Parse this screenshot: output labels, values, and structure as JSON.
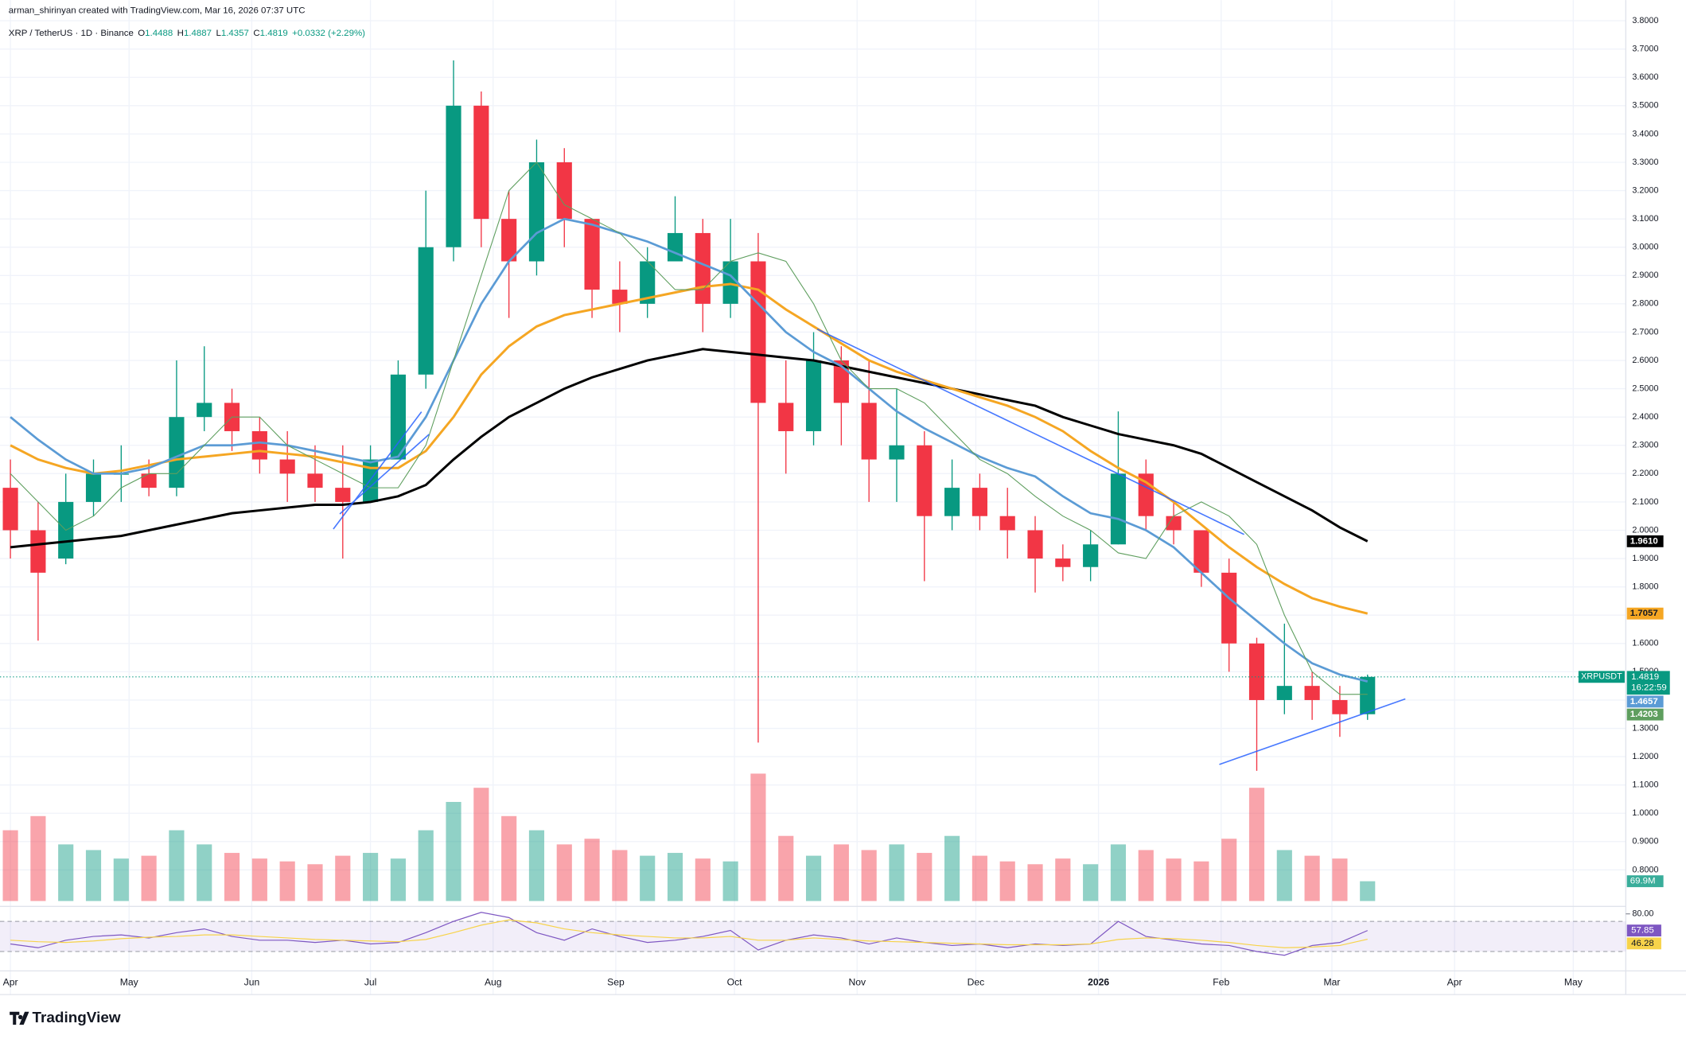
{
  "chart_data": {
    "type": "candlestick",
    "header": {
      "author": "arman_shirinyan created with TradingView.com, Mar 16, 2026 07:37 UTC",
      "symbol": "XRP / TetherUS · 1D · Binance",
      "ohlc": [
        {
          "label": "O",
          "value": 1.4488
        },
        {
          "label": "H",
          "value": 1.4887
        },
        {
          "label": "L",
          "value": 1.4357
        },
        {
          "label": "C",
          "value": 1.4819
        }
      ],
      "change": "+0.0332 (+2.29%)"
    },
    "x": [
      0,
      7,
      14,
      21,
      28,
      35,
      42,
      49,
      56,
      63,
      70,
      77,
      84,
      91,
      98,
      105,
      112,
      119,
      126,
      133,
      140,
      147,
      154,
      161,
      168,
      175,
      182,
      189,
      196,
      203,
      210,
      217,
      224,
      231,
      238,
      245,
      252,
      259,
      266,
      273,
      280,
      287,
      294,
      301,
      308,
      315,
      322,
      329,
      336,
      343
    ],
    "candles": {
      "up_color": "#089981",
      "down_color": "#f23645",
      "open": [
        2.15,
        2.0,
        1.9,
        2.1,
        2.2,
        2.2,
        2.15,
        2.4,
        2.45,
        2.35,
        2.25,
        2.2,
        2.15,
        2.1,
        2.25,
        2.55,
        3.0,
        3.5,
        3.1,
        2.95,
        3.3,
        3.1,
        2.85,
        2.8,
        2.95,
        3.05,
        2.8,
        2.95,
        2.45,
        2.35,
        2.6,
        2.45,
        2.25,
        2.3,
        2.05,
        2.15,
        2.05,
        2.0,
        1.9,
        1.87,
        1.95,
        2.2,
        2.05,
        2.0,
        1.85,
        1.6,
        1.4,
        1.45,
        1.4,
        1.35
      ],
      "high": [
        2.25,
        2.1,
        2.2,
        2.25,
        2.3,
        2.25,
        2.6,
        2.65,
        2.5,
        2.4,
        2.35,
        2.3,
        2.3,
        2.3,
        2.6,
        3.2,
        3.66,
        3.55,
        3.2,
        3.38,
        3.35,
        3.1,
        2.95,
        3.0,
        3.18,
        3.1,
        3.1,
        3.05,
        2.6,
        2.7,
        2.65,
        2.6,
        2.5,
        2.35,
        2.25,
        2.2,
        2.15,
        2.05,
        1.95,
        2.0,
        2.42,
        2.25,
        2.1,
        2.0,
        1.9,
        1.62,
        1.67,
        1.5,
        1.45,
        1.49
      ],
      "low": [
        1.9,
        1.61,
        1.88,
        2.05,
        2.1,
        2.12,
        2.12,
        2.35,
        2.28,
        2.2,
        2.1,
        2.1,
        1.9,
        2.1,
        2.25,
        2.5,
        2.95,
        3.0,
        2.75,
        2.9,
        3.0,
        2.75,
        2.7,
        2.75,
        2.95,
        2.7,
        2.75,
        1.25,
        2.2,
        2.3,
        2.3,
        2.1,
        2.1,
        1.82,
        2.0,
        2.0,
        1.9,
        1.78,
        1.82,
        1.82,
        1.95,
        2.0,
        1.95,
        1.8,
        1.5,
        1.15,
        1.35,
        1.33,
        1.27,
        1.33
      ],
      "close": [
        2.0,
        1.85,
        2.1,
        2.2,
        2.2,
        2.15,
        2.4,
        2.45,
        2.35,
        2.25,
        2.2,
        2.15,
        2.1,
        2.25,
        2.55,
        3.0,
        3.5,
        3.1,
        2.95,
        3.3,
        3.1,
        2.85,
        2.8,
        2.95,
        3.05,
        2.8,
        2.95,
        2.45,
        2.35,
        2.6,
        2.45,
        2.25,
        2.3,
        2.05,
        2.15,
        2.05,
        2.0,
        1.9,
        1.87,
        1.95,
        2.2,
        2.05,
        2.0,
        1.85,
        1.6,
        1.4,
        1.45,
        1.4,
        1.35,
        1.4819
      ]
    },
    "xlim": [
      -1,
      408
    ],
    "xticks": [
      {
        "value": 0,
        "label": "Apr"
      },
      {
        "value": 30,
        "label": "May"
      },
      {
        "value": 61,
        "label": "Jun"
      },
      {
        "value": 91,
        "label": "Jul"
      },
      {
        "value": 122,
        "label": "Aug"
      },
      {
        "value": 153,
        "label": "Sep"
      },
      {
        "value": 183,
        "label": "Oct"
      },
      {
        "value": 214,
        "label": "Nov"
      },
      {
        "value": 244,
        "label": "Dec"
      },
      {
        "value": 275,
        "label": "2026"
      },
      {
        "value": 306,
        "label": "Feb"
      },
      {
        "value": 334,
        "label": "Mar"
      },
      {
        "value": 365,
        "label": "Apr"
      },
      {
        "value": 395,
        "label": "May"
      }
    ],
    "ylim": [
      0.69,
      3.82
    ],
    "yticks": [
      {
        "value": 0.8,
        "label": "0.8000"
      },
      {
        "value": 0.9,
        "label": "0.9000"
      },
      {
        "value": 1,
        "label": "1.0000"
      },
      {
        "value": 1.1,
        "label": "1.1000"
      },
      {
        "value": 1.2,
        "label": "1.2000"
      },
      {
        "value": 1.3,
        "label": "1.3000"
      },
      {
        "value": 1.4,
        "label": "1.4000"
      },
      {
        "value": 1.5,
        "label": "1.5000"
      },
      {
        "value": 1.6,
        "label": "1.6000"
      },
      {
        "value": 1.7,
        "label": "1.7000"
      },
      {
        "value": 1.8,
        "label": "1.8000"
      },
      {
        "value": 1.9,
        "label": "1.9000"
      },
      {
        "value": 2,
        "label": "2.0000"
      },
      {
        "value": 2.1,
        "label": "2.1000"
      },
      {
        "value": 2.2,
        "label": "2.2000"
      },
      {
        "value": 2.3,
        "label": "2.3000"
      },
      {
        "value": 2.4,
        "label": "2.4000"
      },
      {
        "value": 2.5,
        "label": "2.5000"
      },
      {
        "value": 2.6,
        "label": "2.6000"
      },
      {
        "value": 2.7,
        "label": "2.7000"
      },
      {
        "value": 2.8,
        "label": "2.8000"
      },
      {
        "value": 2.9,
        "label": "2.9000"
      },
      {
        "value": 3,
        "label": "3.0000"
      },
      {
        "value": 3.1,
        "label": "3.1000"
      },
      {
        "value": 3.2,
        "label": "3.2000"
      },
      {
        "value": 3.3,
        "label": "3.3000"
      },
      {
        "value": 3.4,
        "label": "3.4000"
      },
      {
        "value": 3.5,
        "label": "3.5000"
      },
      {
        "value": 3.6,
        "label": "3.6000"
      },
      {
        "value": 3.7,
        "label": "3.7000"
      },
      {
        "value": 3.8,
        "label": "3.8000"
      }
    ],
    "moving_averages": [
      {
        "color": "#000000",
        "width": 2.2,
        "label_text": "#ffffff",
        "last_label": "1.9610",
        "values": [
          1.94,
          1.95,
          1.96,
          1.97,
          1.98,
          2.0,
          2.02,
          2.04,
          2.06,
          2.07,
          2.08,
          2.09,
          2.09,
          2.1,
          2.12,
          2.16,
          2.25,
          2.33,
          2.4,
          2.45,
          2.5,
          2.54,
          2.57,
          2.6,
          2.62,
          2.64,
          2.63,
          2.62,
          2.61,
          2.6,
          2.58,
          2.56,
          2.54,
          2.52,
          2.5,
          2.48,
          2.46,
          2.44,
          2.4,
          2.37,
          2.34,
          2.32,
          2.3,
          2.27,
          2.22,
          2.17,
          2.12,
          2.07,
          2.01,
          1.961
        ]
      },
      {
        "color": "#f5a623",
        "width": 2.2,
        "label_text": "#131722",
        "last_label": "1.7057",
        "values": [
          2.3,
          2.25,
          2.22,
          2.2,
          2.21,
          2.23,
          2.25,
          2.26,
          2.27,
          2.28,
          2.27,
          2.26,
          2.24,
          2.22,
          2.22,
          2.28,
          2.4,
          2.55,
          2.65,
          2.72,
          2.76,
          2.78,
          2.8,
          2.82,
          2.84,
          2.86,
          2.87,
          2.85,
          2.78,
          2.72,
          2.66,
          2.6,
          2.56,
          2.53,
          2.5,
          2.47,
          2.44,
          2.4,
          2.35,
          2.28,
          2.22,
          2.17,
          2.1,
          2.02,
          1.94,
          1.87,
          1.81,
          1.76,
          1.73,
          1.7057
        ]
      },
      {
        "color": "#5b9bd5",
        "width": 2,
        "label_text": "#ffffff",
        "last_label": "1.4657",
        "values": [
          2.4,
          2.32,
          2.25,
          2.2,
          2.2,
          2.22,
          2.26,
          2.3,
          2.3,
          2.31,
          2.3,
          2.28,
          2.26,
          2.24,
          2.26,
          2.4,
          2.6,
          2.8,
          2.95,
          3.05,
          3.1,
          3.08,
          3.05,
          3.02,
          2.98,
          2.94,
          2.9,
          2.8,
          2.7,
          2.63,
          2.58,
          2.5,
          2.42,
          2.36,
          2.31,
          2.26,
          2.22,
          2.19,
          2.12,
          2.06,
          2.04,
          2.0,
          1.94,
          1.85,
          1.76,
          1.68,
          1.6,
          1.53,
          1.49,
          1.4657
        ]
      },
      {
        "color": "#5e9e5e",
        "width": 0.8,
        "label_text": "#ffffff",
        "last_label": "1.4203",
        "values": [
          2.2,
          2.1,
          2.0,
          2.05,
          2.15,
          2.2,
          2.2,
          2.3,
          2.4,
          2.4,
          2.3,
          2.25,
          2.2,
          2.15,
          2.15,
          2.3,
          2.6,
          2.9,
          3.2,
          3.3,
          3.15,
          3.1,
          3.05,
          2.95,
          2.85,
          2.85,
          2.95,
          2.98,
          2.95,
          2.8,
          2.6,
          2.5,
          2.5,
          2.45,
          2.35,
          2.25,
          2.2,
          2.12,
          2.05,
          2.0,
          1.92,
          1.9,
          2.05,
          2.1,
          2.05,
          1.95,
          1.7,
          1.5,
          1.42,
          1.4203
        ]
      }
    ],
    "symbol_label": "XRPUSDT",
    "countdown": "16:22:59",
    "volume": {
      "ylim": [
        0,
        600
      ],
      "last_label": "69.9M",
      "values": [
        250,
        300,
        200,
        180,
        150,
        160,
        250,
        200,
        170,
        150,
        140,
        130,
        160,
        170,
        150,
        250,
        350,
        400,
        300,
        250,
        200,
        220,
        180,
        160,
        170,
        150,
        140,
        450,
        230,
        160,
        200,
        180,
        200,
        170,
        230,
        160,
        140,
        130,
        150,
        130,
        200,
        180,
        150,
        140,
        220,
        400,
        180,
        160,
        150,
        69.9
      ]
    },
    "rsi": {
      "color": "#7e57c2",
      "ma_color": "#f7d34a",
      "ylim": [
        0,
        87
      ],
      "yticks": [
        {
          "value": 80,
          "label": "80.00"
        }
      ],
      "bands": [
        30,
        70
      ],
      "values": [
        40,
        35,
        45,
        50,
        52,
        48,
        55,
        60,
        50,
        45,
        45,
        42,
        45,
        40,
        42,
        55,
        70,
        82,
        75,
        55,
        45,
        60,
        50,
        42,
        45,
        50,
        58,
        32,
        45,
        52,
        48,
        40,
        48,
        42,
        38,
        40,
        35,
        40,
        38,
        40,
        70,
        50,
        45,
        40,
        38,
        30,
        25,
        38,
        42,
        57.85
      ],
      "ma_values": [
        45,
        43,
        42,
        44,
        47,
        49,
        50,
        52,
        52,
        50,
        48,
        46,
        45,
        44,
        43,
        46,
        55,
        65,
        72,
        68,
        60,
        55,
        52,
        50,
        48,
        48,
        50,
        45,
        45,
        48,
        46,
        44,
        43,
        42,
        41,
        40,
        39,
        39,
        39,
        40,
        46,
        48,
        47,
        45,
        42,
        38,
        35,
        36,
        38,
        46.28
      ]
    },
    "brand": "TradingView"
  }
}
